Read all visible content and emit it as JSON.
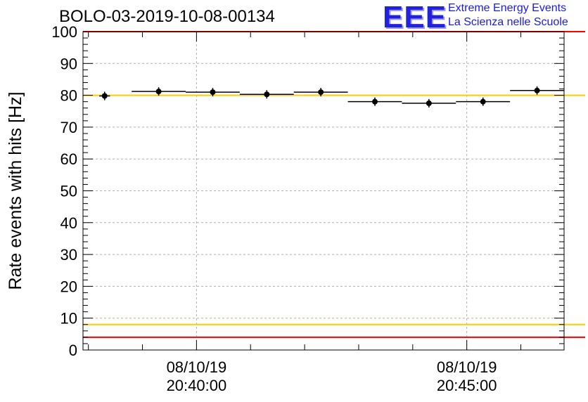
{
  "header": {
    "title": "BOLO-03-2019-10-08-00134",
    "logo_mark": "EEE",
    "logo_line1": "Extreme Energy Events",
    "logo_line2": "La Scienza nelle Scuole"
  },
  "colors": {
    "red": "#ff0000",
    "yellow": "#ffcc00",
    "grid": "#b0b0b0",
    "axis": "#000000",
    "logo": "#2222dd"
  },
  "chart_data": {
    "type": "scatter",
    "title": "BOLO-03-2019-10-08-00134",
    "ylabel": "Rate events with hits [Hz]",
    "xlabel": "",
    "ylim": [
      0,
      100
    ],
    "xlim_minutes": [
      -2.1,
      6.8
    ],
    "grid": true,
    "y_ticks": [
      0,
      10,
      20,
      30,
      40,
      50,
      60,
      70,
      80,
      90,
      100
    ],
    "x_ticks": [
      {
        "minute": 0,
        "date": "08/10/19",
        "time": "20:40:00"
      },
      {
        "minute": 5,
        "date": "08/10/19",
        "time": "20:45:00"
      }
    ],
    "reference_lines": [
      {
        "y": 100,
        "color": "red"
      },
      {
        "y": 80,
        "color": "yellow"
      },
      {
        "y": 8,
        "color": "yellow"
      },
      {
        "y": 4,
        "color": "red"
      }
    ],
    "series": [
      {
        "points": [
          {
            "x_start": -1.8,
            "x_end": -1.6,
            "y": 79.8
          },
          {
            "x_start": -1.2,
            "x_end": -0.2,
            "y": 81.2
          },
          {
            "x_start": -0.2,
            "x_end": 0.8,
            "y": 81.0
          },
          {
            "x_start": 0.8,
            "x_end": 1.8,
            "y": 80.3
          },
          {
            "x_start": 1.8,
            "x_end": 2.8,
            "y": 81.0
          },
          {
            "x_start": 2.8,
            "x_end": 3.8,
            "y": 78.0
          },
          {
            "x_start": 3.8,
            "x_end": 4.8,
            "y": 77.5
          },
          {
            "x_start": 4.8,
            "x_end": 5.8,
            "y": 78.0
          },
          {
            "x_start": 5.8,
            "x_end": 6.8,
            "y": 81.5
          }
        ]
      }
    ]
  }
}
